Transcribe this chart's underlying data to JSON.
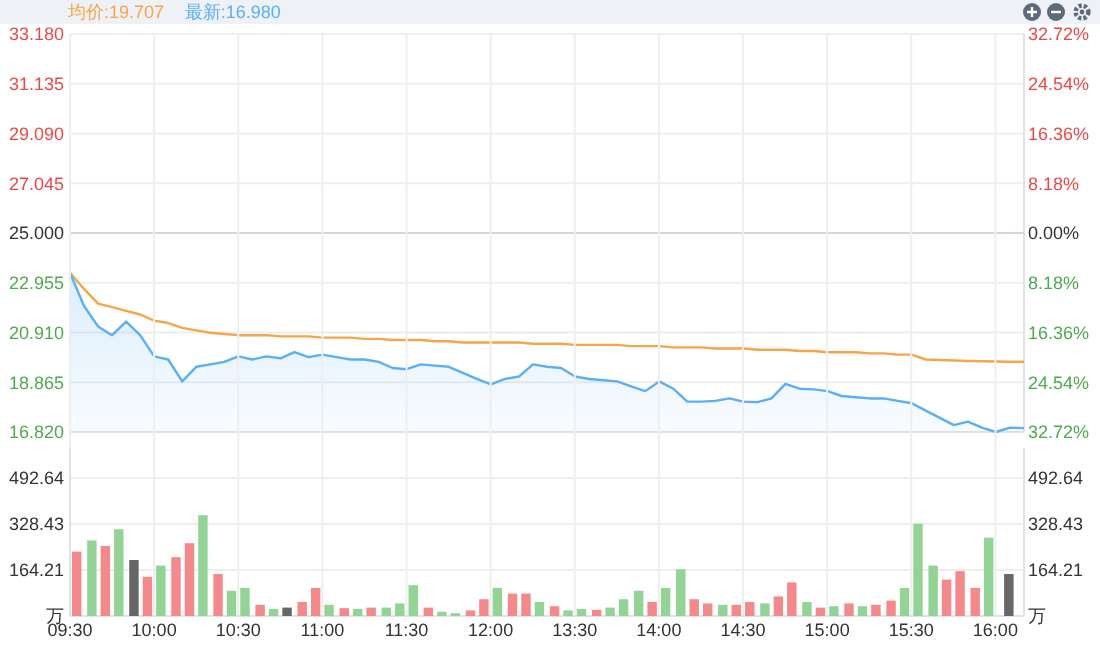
{
  "chart_data": [
    {
      "type": "line",
      "grid": "y",
      "tick_labels": "y",
      "categories": [
        null,
        null,
        null,
        null,
        null,
        null,
        null,
        null,
        null,
        null,
        null,
        null,
        null,
        null,
        null,
        null,
        null,
        null,
        null,
        null,
        null,
        null,
        null,
        null,
        null,
        null,
        null,
        null,
        null,
        null,
        null,
        null,
        null,
        null,
        null,
        null,
        null,
        null,
        null,
        null,
        null,
        null,
        null,
        null,
        null,
        null,
        null,
        null,
        null,
        null,
        null,
        null,
        null,
        null,
        null,
        null,
        null,
        null,
        null,
        null,
        null,
        null,
        null,
        null,
        null,
        null,
        null,
        null,
        null
      ],
      "series": [
        {
          "name": "均价:19.707",
          "type": "line",
          "color": "#f5a54a",
          "values": [
            23.36,
            22.7,
            22.1,
            21.95,
            21.8,
            21.65,
            21.4,
            21.3,
            21.1,
            21.0,
            20.9,
            20.85,
            20.8,
            20.8,
            20.8,
            20.75,
            20.75,
            20.75,
            20.7,
            20.7,
            20.7,
            20.65,
            20.65,
            20.6,
            20.6,
            20.6,
            20.55,
            20.55,
            20.5,
            20.5,
            20.5,
            20.5,
            20.5,
            20.45,
            20.45,
            20.45,
            20.4,
            20.4,
            20.4,
            20.4,
            20.35,
            20.35,
            20.35,
            20.3,
            20.3,
            20.3,
            20.25,
            20.25,
            20.25,
            20.2,
            20.2,
            20.2,
            20.15,
            20.15,
            20.1,
            20.1,
            20.1,
            20.05,
            20.05,
            20.0,
            20.0,
            19.8,
            19.78,
            19.76,
            19.74,
            19.73,
            19.72,
            19.71,
            19.71
          ]
        },
        {
          "name": "最新:16.980",
          "type": "area",
          "color": "#5aaff5",
          "values": [
            23.36,
            22.0,
            21.16,
            20.8,
            21.36,
            20.8,
            19.93,
            19.8,
            18.9,
            19.5,
            19.6,
            19.7,
            19.93,
            19.8,
            19.93,
            19.85,
            20.1,
            19.9,
            20.0,
            19.9,
            19.8,
            19.8,
            19.7,
            19.45,
            19.4,
            19.6,
            19.55,
            19.5,
            19.25,
            19.0,
            18.78,
            19.0,
            19.1,
            19.6,
            19.5,
            19.45,
            19.1,
            19.0,
            18.95,
            18.9,
            18.7,
            18.5,
            18.9,
            18.6,
            18.07,
            18.07,
            18.1,
            18.2,
            18.07,
            18.05,
            18.2,
            18.8,
            18.6,
            18.57,
            18.5,
            18.3,
            18.25,
            18.2,
            18.2,
            18.1,
            18.0,
            17.7,
            17.4,
            17.1,
            17.25,
            17.0,
            16.82,
            17.0,
            16.98
          ]
        }
      ],
      "ylim": [
        16.82,
        33.18
      ],
      "yticks": [
        {
          "value": 16.82,
          "label": "16.820"
        },
        {
          "value": 18.865,
          "label": "18.865"
        },
        {
          "value": 20.91,
          "label": "20.910"
        },
        {
          "value": 22.955,
          "label": "22.955"
        },
        {
          "value": 25,
          "label": "25.000"
        },
        {
          "value": 27.045,
          "label": "27.045"
        },
        {
          "value": 29.09,
          "label": "29.090"
        },
        {
          "value": 31.135,
          "label": "31.135"
        },
        {
          "value": 33.18,
          "label": "33.180"
        }
      ],
      "y2lim": [
        -32.72,
        32.72
      ],
      "y2ticks": [
        {
          "value": -32.72,
          "label": "32.72%"
        },
        {
          "value": -24.54,
          "label": "24.54%"
        },
        {
          "value": -16.36,
          "label": "16.36%"
        },
        {
          "value": -8.18,
          "label": "8.18%"
        },
        {
          "value": 0,
          "label": "0.00%"
        },
        {
          "value": 8.18,
          "label": "8.18%"
        },
        {
          "value": 16.36,
          "label": "16.36%"
        },
        {
          "value": 24.54,
          "label": "24.54%"
        },
        {
          "value": 32.72,
          "label": "32.72%"
        }
      ],
      "ref_lines": [
        {
          "axis": "y",
          "value": 25,
          "color": "#cfd6e0"
        }
      ]
    },
    {
      "type": "bar",
      "grid": true,
      "x": [
        9.54,
        9.63,
        9.71,
        9.79,
        9.88,
        9.96,
        10.04,
        10.13,
        10.21,
        10.29,
        10.38,
        10.46,
        10.54,
        10.63,
        10.71,
        10.79,
        10.88,
        10.96,
        11.04,
        11.13,
        11.21,
        11.29,
        11.38,
        11.46,
        11.54,
        11.63,
        11.71,
        11.79,
        11.88,
        11.96
      ],
      "values": [
        230,
        270,
        250,
        310,
        200,
        140,
        180,
        210,
        260,
        360,
        150,
        90,
        100,
        40,
        25,
        30,
        50,
        100,
        40,
        28,
        25,
        30,
        30,
        45,
        110,
        30,
        15,
        10,
        20,
        60
      ],
      "colors": [
        "#f4898b",
        "#93d396",
        "#f4898b",
        "#93d396",
        "#666666",
        "#f4898b",
        "#93d396",
        "#f4898b",
        "#f4898b",
        "#93d396",
        "#f4898b",
        "#93d396",
        "#93d396",
        "#f4898b",
        "#93d396",
        "#666666",
        "#f4898b",
        "#f4898b",
        "#93d396",
        "#f4898b",
        "#93d396",
        "#f4898b",
        "#93d396",
        "#93d396",
        "#93d396",
        "#f4898b",
        "#93d396",
        "#93d396",
        "#f4898b",
        "#f4898b"
      ],
      "xlim": [
        9.5,
        12
      ],
      "xticks": [
        {
          "value": 9.5,
          "label": "09:30"
        },
        {
          "value": 10,
          "label": "10:00"
        },
        {
          "value": 10.5,
          "label": "10:30"
        },
        {
          "value": 11,
          "label": "11:00"
        },
        {
          "value": 11.5,
          "label": "11:30"
        },
        {
          "value": 12,
          "label": "12:00"
        }
      ],
      "ylim": [
        0,
        600
      ],
      "yticks": [
        {
          "value": 0,
          "label": "万"
        },
        164.21,
        328.43,
        492.64
      ]
    },
    {
      "type": "bar",
      "grid": true,
      "tick_labels": "x y2",
      "x": [
        13.04,
        13.13,
        13.21,
        13.29,
        13.38,
        13.46,
        13.54,
        13.63,
        13.71,
        13.79,
        13.88,
        13.96,
        14.04,
        14.13,
        14.21,
        14.29,
        14.38,
        14.46,
        14.54,
        14.63,
        14.71,
        14.79,
        14.88,
        14.96,
        15.04,
        15.13,
        15.21,
        15.29,
        15.38,
        15.46,
        15.54,
        15.63,
        15.71,
        15.79,
        15.88,
        15.96,
        16.08
      ],
      "values": [
        100,
        80,
        80,
        50,
        35,
        20,
        25,
        22,
        30,
        60,
        90,
        50,
        100,
        167,
        60,
        45,
        40,
        40,
        50,
        45,
        70,
        120,
        50,
        30,
        35,
        45,
        35,
        40,
        55,
        100,
        330,
        180,
        130,
        160,
        100,
        280,
        150
      ],
      "colors": [
        "#93d396",
        "#f4898b",
        "#f4898b",
        "#93d396",
        "#f4898b",
        "#93d396",
        "#93d396",
        "#f4898b",
        "#93d396",
        "#93d396",
        "#93d396",
        "#f4898b",
        "#93d396",
        "#93d396",
        "#f4898b",
        "#f4898b",
        "#93d396",
        "#f4898b",
        "#f4898b",
        "#93d396",
        "#f4898b",
        "#f4898b",
        "#93d396",
        "#f4898b",
        "#93d396",
        "#f4898b",
        "#93d396",
        "#f4898b",
        "#f4898b",
        "#93d396",
        "#93d396",
        "#93d396",
        "#f4898b",
        "#f4898b",
        "#f4898b",
        "#93d396",
        "#666666"
      ],
      "xlim": [
        13,
        16.17
      ],
      "xticks": [
        {
          "value": 13.5,
          "label": "13:30"
        },
        {
          "value": 14,
          "label": "14:00"
        },
        {
          "value": 14.5,
          "label": "14:30"
        },
        {
          "value": 15,
          "label": "15:00"
        },
        {
          "value": 15.5,
          "label": "15:30"
        },
        {
          "value": 16,
          "label": "16:00"
        }
      ],
      "ylim": [
        0,
        600
      ],
      "y2lim": [
        0,
        600
      ],
      "y2ticks": [
        {
          "value": 0,
          "label": "万"
        },
        164.21,
        328.43,
        492.64
      ]
    }
  ]
}
